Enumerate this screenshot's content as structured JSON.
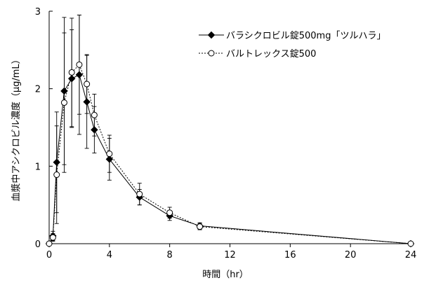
{
  "chart_data": {
    "type": "line",
    "title": "",
    "xlabel": "時間（hr）",
    "ylabel": "血漿中アシクロビル濃度（μg/mL）",
    "xlim": [
      0,
      24
    ],
    "ylim": [
      0,
      3
    ],
    "x_ticks": [
      0,
      4,
      8,
      12,
      16,
      20,
      24
    ],
    "y_ticks": [
      0,
      1,
      2,
      3
    ],
    "grid": false,
    "legend_position": "top-right",
    "series": [
      {
        "name": "バラシクロビル錠500mg「ツルハラ」",
        "marker": "filled-diamond",
        "line": "solid",
        "color": "#000000",
        "points": [
          {
            "x": 0,
            "y": 0.0,
            "err": 0
          },
          {
            "x": 0.25,
            "y": 0.1,
            "err": 0.06
          },
          {
            "x": 0.5,
            "y": 1.05,
            "err": 0.65
          },
          {
            "x": 1,
            "y": 1.97,
            "err": 0.95
          },
          {
            "x": 1.5,
            "y": 2.13,
            "err": 0.63
          },
          {
            "x": 2,
            "y": 2.18,
            "err": 0.77
          },
          {
            "x": 2.5,
            "y": 1.83,
            "err": 0.6
          },
          {
            "x": 3,
            "y": 1.47,
            "err": 0.3
          },
          {
            "x": 4,
            "y": 1.09,
            "err": 0.27
          },
          {
            "x": 6,
            "y": 0.6,
            "err": 0.1
          },
          {
            "x": 8,
            "y": 0.36,
            "err": 0.06
          },
          {
            "x": 10,
            "y": 0.23,
            "err": 0.04
          },
          {
            "x": 24,
            "y": 0.0,
            "err": 0
          }
        ]
      },
      {
        "name": "バルトレックス錠500",
        "marker": "open-circle",
        "line": "dotted",
        "color": "#000000",
        "points": [
          {
            "x": 0,
            "y": 0.0,
            "err": 0
          },
          {
            "x": 0.25,
            "y": 0.08,
            "err": 0.05
          },
          {
            "x": 0.5,
            "y": 0.89,
            "err": 0.63
          },
          {
            "x": 1,
            "y": 1.82,
            "err": 0.9
          },
          {
            "x": 1.5,
            "y": 2.21,
            "err": 0.7
          },
          {
            "x": 2,
            "y": 2.31,
            "err": 0.64
          },
          {
            "x": 2.5,
            "y": 2.06,
            "err": 0.38
          },
          {
            "x": 3,
            "y": 1.66,
            "err": 0.27
          },
          {
            "x": 4,
            "y": 1.16,
            "err": 0.24
          },
          {
            "x": 6,
            "y": 0.64,
            "err": 0.14
          },
          {
            "x": 8,
            "y": 0.4,
            "err": 0.07
          },
          {
            "x": 10,
            "y": 0.22,
            "err": 0.04
          },
          {
            "x": 24,
            "y": 0.0,
            "err": 0
          }
        ]
      }
    ]
  }
}
